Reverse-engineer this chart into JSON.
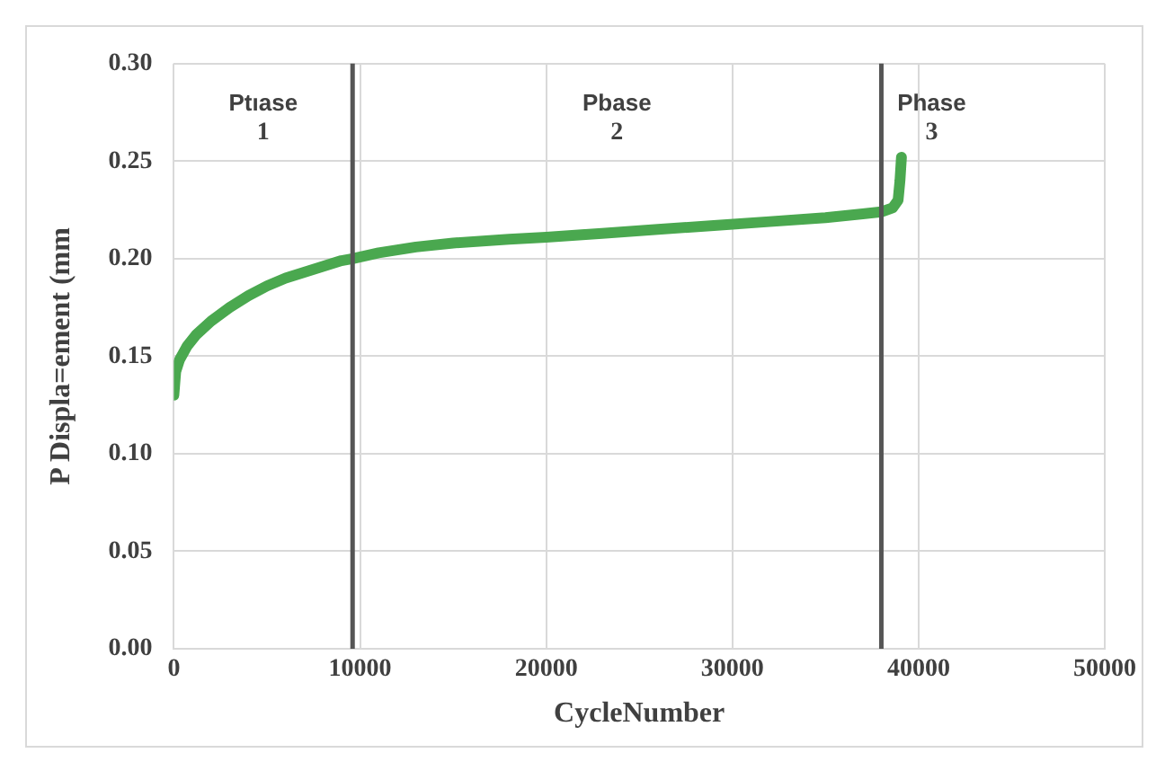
{
  "chart_data": {
    "type": "line",
    "xlabel": "CycleNumber",
    "ylabel": "P Displa=ement (mm",
    "xlim": [
      0,
      50000
    ],
    "xticks": [
      0,
      10000,
      20000,
      30000,
      40000,
      50000
    ],
    "ylim": [
      0,
      0.3
    ],
    "yticks": [
      {
        "value": 0,
        "label": "0.00"
      },
      {
        "value": 0.05,
        "label": "0.05"
      },
      {
        "value": 0.1,
        "label": "0.10"
      },
      {
        "value": 0.15,
        "label": "0.15"
      },
      {
        "value": 0.2,
        "label": "0.20"
      },
      {
        "value": 0.25,
        "label": "0.25"
      },
      {
        "value": 0.3,
        "label": "0.30"
      }
    ],
    "grid": true,
    "legend": false,
    "marker": "none",
    "line_style": "solid",
    "series": [
      {
        "color": "#4aa84f",
        "x": [
          0,
          100,
          300,
          700,
          1200,
          2000,
          3000,
          4000,
          5000,
          6000,
          7000,
          8000,
          9000,
          9600,
          11000,
          13000,
          15000,
          18000,
          20000,
          23000,
          26000,
          29000,
          32000,
          35000,
          37000,
          38000,
          38600,
          38900,
          39000,
          39080
        ],
        "values": [
          0.13,
          0.142,
          0.148,
          0.155,
          0.161,
          0.168,
          0.175,
          0.181,
          0.186,
          0.19,
          0.193,
          0.196,
          0.199,
          0.2,
          0.203,
          0.206,
          0.208,
          0.21,
          0.211,
          0.213,
          0.215,
          0.217,
          0.219,
          0.221,
          0.223,
          0.224,
          0.226,
          0.23,
          0.24,
          0.252
        ]
      }
    ],
    "ref_lines": [
      {
        "axis": "x",
        "value": 9600,
        "color": "#555555"
      },
      {
        "axis": "x",
        "value": 38000,
        "color": "#555555"
      }
    ],
    "annotations": [
      "Ptıase 1",
      "Pbase 2",
      "Phase 3"
    ]
  }
}
